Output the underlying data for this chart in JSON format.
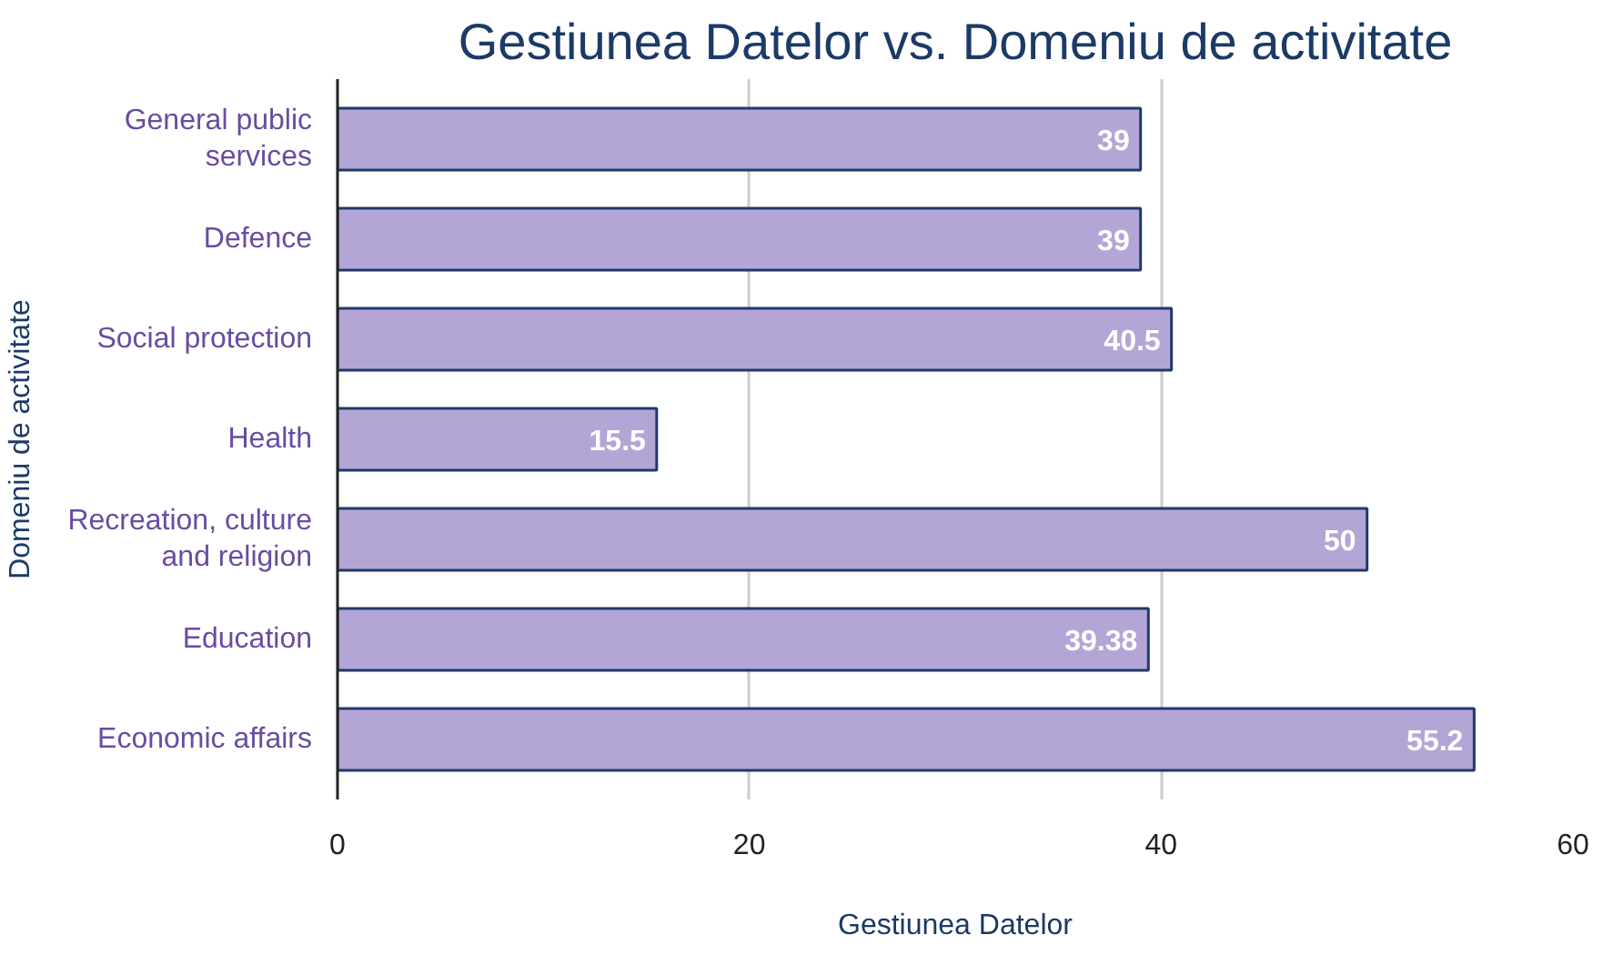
{
  "chart_data": {
    "type": "bar",
    "orientation": "horizontal",
    "title": "Gestiunea Datelor vs. Domeniu de activitate",
    "xlabel": "Gestiunea Datelor",
    "ylabel": "Domeniu de activitate",
    "categories": [
      "General public services",
      "Defence",
      "Social protection",
      "Health",
      "Recreation, culture and religion",
      "Education",
      "Economic affairs"
    ],
    "values": [
      39,
      39,
      40.5,
      15.5,
      50,
      39.38,
      55.2
    ],
    "color": "#b3a6d6",
    "xlim": [
      0,
      60
    ],
    "xticks": [
      0,
      20,
      40,
      60
    ],
    "grid": "x",
    "data_labels": true
  }
}
